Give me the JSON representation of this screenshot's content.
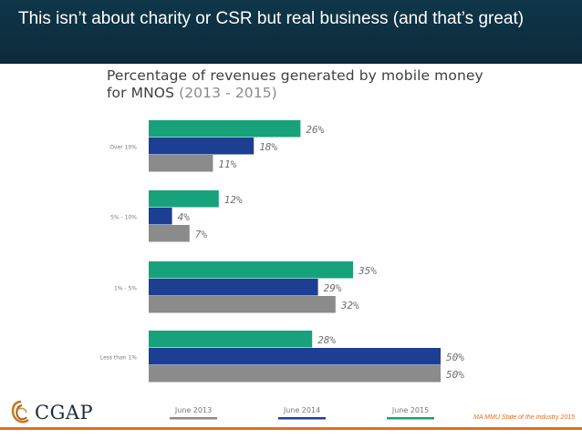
{
  "header": {
    "title": "This isn’t about charity or CSR but real business (and that’s great)"
  },
  "chart_data": {
    "type": "bar",
    "orientation": "horizontal",
    "title": "Percentage of revenues generated by mobile money for MNOS",
    "title_years": "(2013 - 2015)",
    "categories": [
      "Over 10%",
      "5% - 10%",
      "1% - 5%",
      "Less than 1%"
    ],
    "series": [
      {
        "name": "June 2015",
        "color": "#17a27c",
        "values": [
          26,
          12,
          35,
          28
        ],
        "labels": [
          "26%",
          "12%",
          "35%",
          "28%"
        ]
      },
      {
        "name": "June 2014",
        "color": "#1c3f94",
        "values": [
          18,
          4,
          29,
          50
        ],
        "labels": [
          "18%",
          "4%",
          "29%",
          "50%"
        ]
      },
      {
        "name": "June 2013",
        "color": "#8b8b8b",
        "values": [
          11,
          7,
          32,
          50
        ],
        "labels": [
          "11%",
          "7%",
          "32%",
          "50%"
        ]
      }
    ],
    "legend": [
      {
        "name": "June 2013",
        "color": "#8b8b8b"
      },
      {
        "name": "June 2014",
        "color": "#1c3f94"
      },
      {
        "name": "June 2015",
        "color": "#17a27c"
      }
    ],
    "xlim": [
      0,
      50
    ],
    "legend_position": "bottom"
  },
  "logo": {
    "text": "CGAP",
    "icon": "cgap-swirl-icon"
  },
  "source": "MA MMU State of the Industry 2015"
}
